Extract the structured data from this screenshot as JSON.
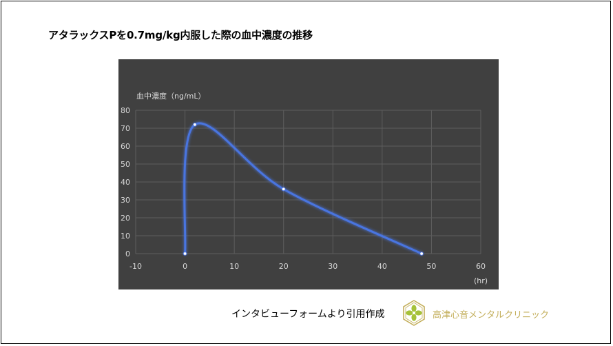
{
  "header": {
    "title": "アタラックスPを0.7mg/kg内服した際の血中濃度の推移"
  },
  "footer": {
    "credit": "インタビューフォームより引用作成",
    "clinic_name": "高津心音メンタルクリニック",
    "logo_icon": "clover-logo-icon"
  },
  "colors": {
    "panel_background": "#404040",
    "series_line": "#4a74e0",
    "grid": "#5e5e5e",
    "text_on_panel": "#d9d9d9",
    "clinic_text": "#c3ae5a",
    "logo_outline": "#c3ae5a",
    "logo_fill": "#a6c23a"
  },
  "chart_data": {
    "type": "line",
    "smooth": true,
    "series": [
      {
        "x": [
          0,
          2,
          20,
          48
        ],
        "y": [
          0,
          72,
          36,
          0
        ]
      }
    ],
    "ylabel": "血中濃度（ng/mL）",
    "xlabel": "(hr)",
    "xlim": [
      -10,
      60
    ],
    "ylim": [
      0,
      80
    ],
    "xticks": [
      -10,
      0,
      10,
      20,
      30,
      40,
      50,
      60
    ],
    "yticks": [
      0,
      10,
      20,
      30,
      40,
      50,
      60,
      70,
      80
    ],
    "grid": true,
    "legend": "none"
  }
}
